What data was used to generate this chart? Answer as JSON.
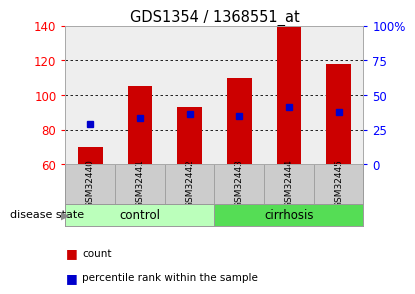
{
  "title": "GDS1354 / 1368551_at",
  "samples": [
    "GSM32440",
    "GSM32441",
    "GSM32442",
    "GSM32443",
    "GSM32444",
    "GSM32445"
  ],
  "count_values": [
    70,
    105,
    93,
    110,
    140,
    118
  ],
  "percentile_y_values": [
    83,
    87,
    89,
    88,
    93,
    90
  ],
  "ymin": 60,
  "ymax": 140,
  "yticks_left": [
    60,
    80,
    100,
    120,
    140
  ],
  "yticks_right_labels": [
    "0",
    "25",
    "50",
    "75",
    "100%"
  ],
  "yticks_right_positions": [
    60,
    80,
    100,
    120,
    140
  ],
  "bar_color": "#cc0000",
  "percentile_color": "#0000cc",
  "bg_color": "#ffffff",
  "plot_bg_color": "#eeeeee",
  "sample_box_color": "#cccccc",
  "group_control_color": "#bbffbb",
  "group_cirrhosis_color": "#55dd55",
  "bar_width": 0.5,
  "legend_count_label": "count",
  "legend_percentile_label": "percentile rank within the sample",
  "disease_state_label": "disease state"
}
